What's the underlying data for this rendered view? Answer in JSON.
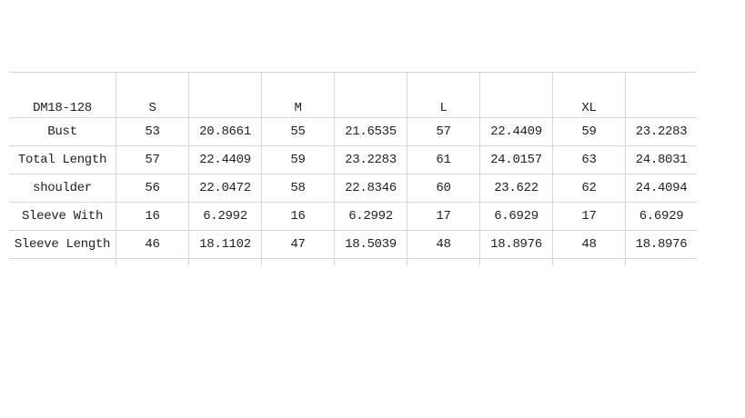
{
  "table": {
    "header": [
      "DM18-128",
      "S",
      "",
      "M",
      "",
      "L",
      "",
      "XL",
      ""
    ],
    "rows": [
      [
        "Bust",
        "53",
        "20.8661",
        "55",
        "21.6535",
        "57",
        "22.4409",
        "59",
        "23.2283"
      ],
      [
        "Total Length",
        "57",
        "22.4409",
        "59",
        "23.2283",
        "61",
        "24.0157",
        "63",
        "24.8031"
      ],
      [
        "shoulder",
        "56",
        "22.0472",
        "58",
        "22.8346",
        "60",
        "23.622",
        "62",
        "24.4094"
      ],
      [
        "Sleeve With",
        "16",
        "6.2992",
        "16",
        "6.2992",
        "17",
        "6.6929",
        "17",
        "6.6929"
      ],
      [
        "Sleeve Length",
        "46",
        "18.1102",
        "47",
        "18.5039",
        "48",
        "18.8976",
        "48",
        "18.8976"
      ]
    ]
  }
}
